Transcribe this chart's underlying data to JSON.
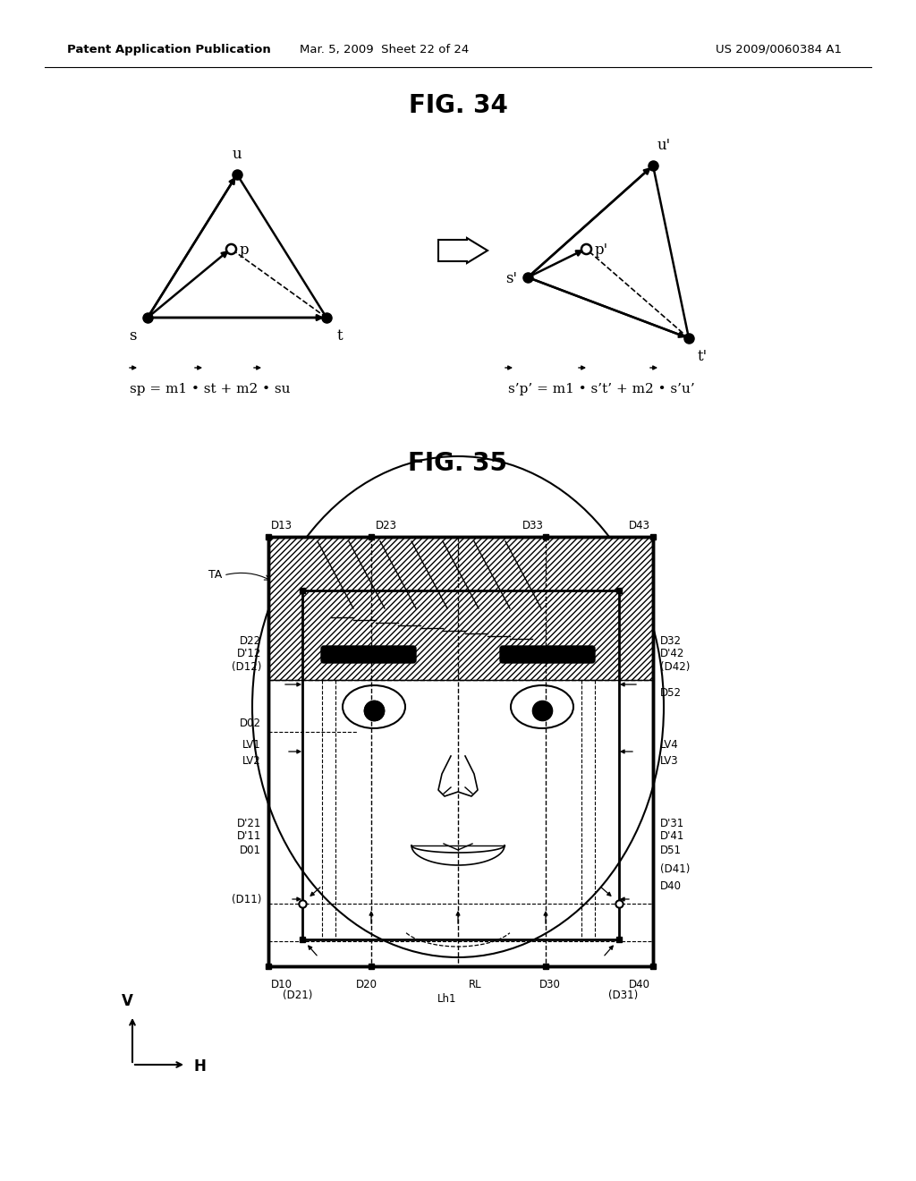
{
  "header_left": "Patent Application Publication",
  "header_mid": "Mar. 5, 2009  Sheet 22 of 24",
  "header_right": "US 2009/0060384 A1",
  "fig34_title": "FIG. 34",
  "fig35_title": "FIG. 35",
  "bg_color": "#ffffff",
  "text_color": "#000000"
}
